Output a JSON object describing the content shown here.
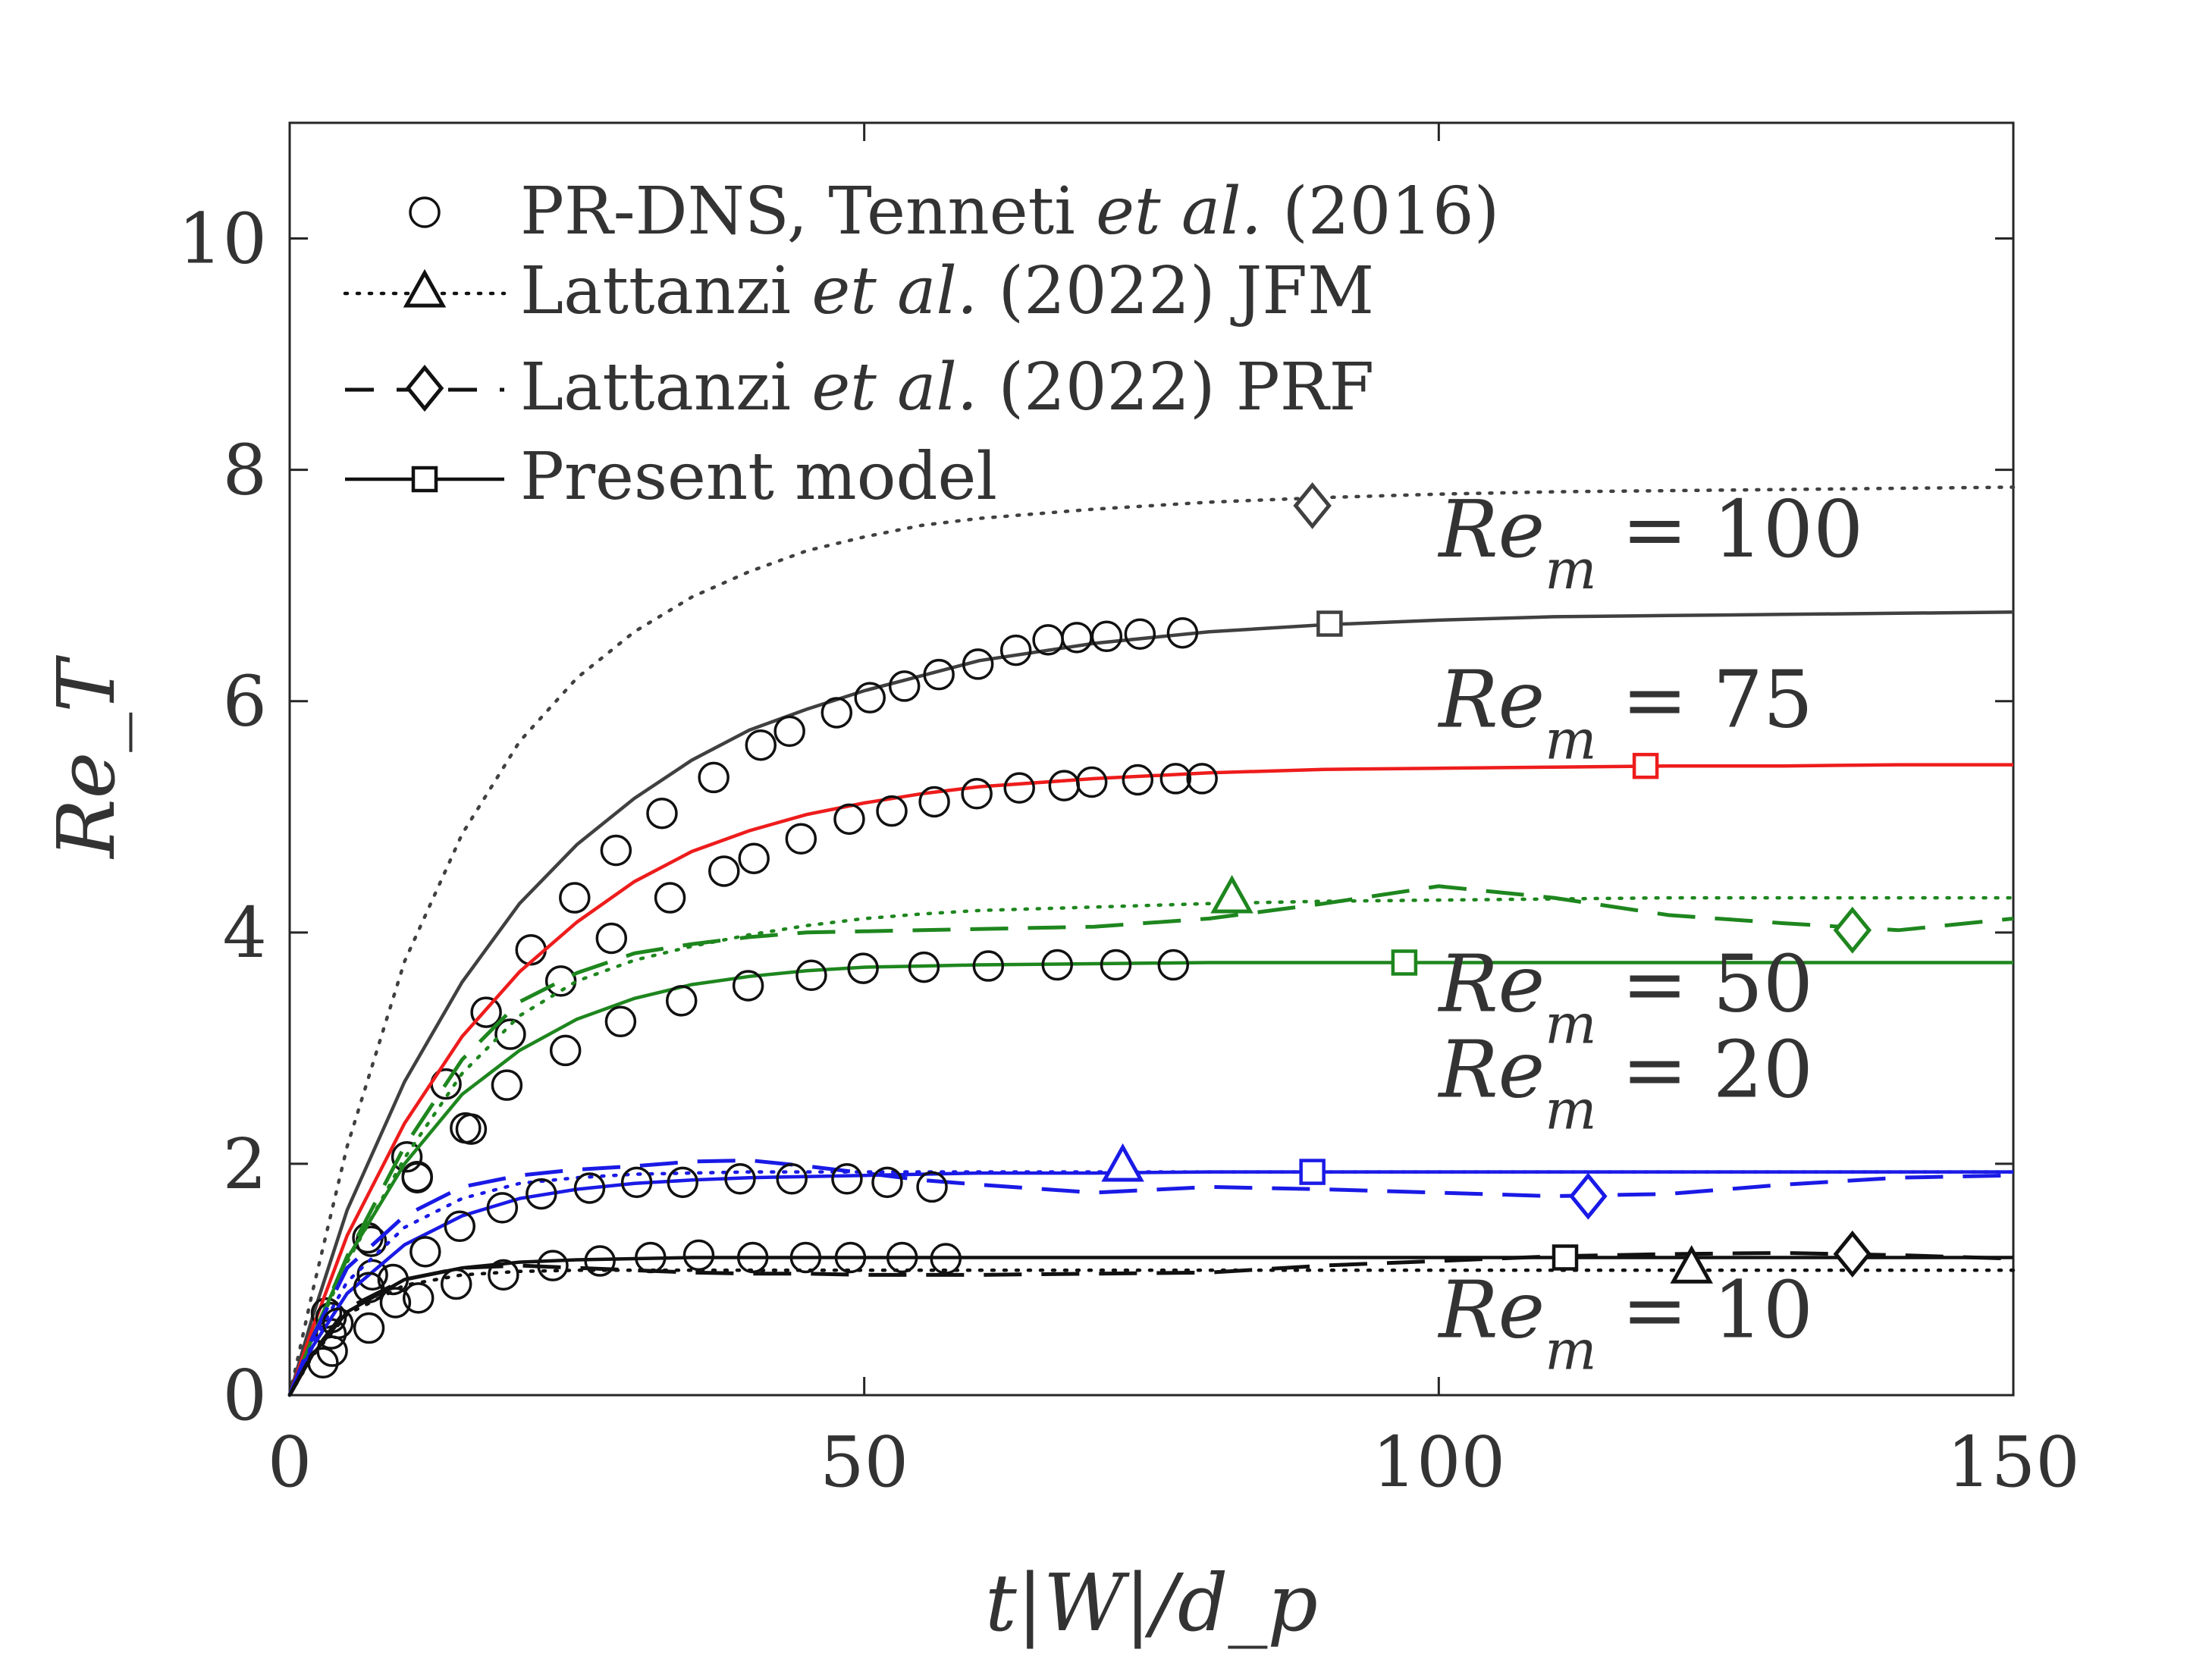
{
  "chart_data": {
    "type": "line",
    "title": "",
    "xlabel": "t|W|/d_p",
    "ylabel": "Re_T",
    "xlim": [
      0,
      150
    ],
    "ylim": [
      0,
      11
    ],
    "xticks": [
      0,
      50,
      100,
      150
    ],
    "yticks": [
      0,
      2,
      4,
      6,
      8,
      10
    ],
    "grid": false,
    "legend_position": "top-left",
    "legend": [
      {
        "key": "dns",
        "pre": "PR-DNS, Tenneti ",
        "it": "et al.",
        "post": " (2016)"
      },
      {
        "key": "jfm",
        "pre": "Lattanzi ",
        "it": "et al.",
        "post": " (2022) JFM"
      },
      {
        "key": "prf",
        "pre": "Lattanzi ",
        "it": "et al.",
        "post": " (2022) PRF"
      },
      {
        "key": "model",
        "pre": "Present model",
        "it": "",
        "post": ""
      }
    ],
    "cases": [
      {
        "label": "Re_m = 100",
        "re": "100",
        "color": "#404040",
        "model_x": [
          0,
          2,
          5,
          10,
          15,
          20,
          25,
          30,
          35,
          40,
          45,
          50,
          55,
          60,
          70,
          80,
          90,
          100,
          110,
          120,
          130,
          140,
          150
        ],
        "model_y": [
          0,
          0.68,
          1.6,
          2.71,
          3.57,
          4.25,
          4.76,
          5.16,
          5.49,
          5.75,
          5.93,
          6.09,
          6.22,
          6.35,
          6.5,
          6.6,
          6.66,
          6.7,
          6.73,
          6.74,
          6.75,
          6.76,
          6.77
        ],
        "model_marker": [
          90.5,
          6.67
        ],
        "jfm_x": [
          0,
          2,
          5,
          10,
          15,
          20,
          25,
          30,
          35,
          40,
          45,
          50,
          55,
          60,
          70,
          80,
          90,
          100,
          110,
          120,
          130,
          140,
          150
        ],
        "jfm_y": [
          0,
          0.9,
          2.15,
          3.75,
          4.85,
          5.65,
          6.2,
          6.6,
          6.9,
          7.12,
          7.3,
          7.42,
          7.52,
          7.58,
          7.66,
          7.72,
          7.76,
          7.79,
          7.81,
          7.82,
          7.83,
          7.84,
          7.85
        ],
        "prf_marker": [
          89,
          7.69
        ],
        "dns_x": [
          3.2,
          6.8,
          10.2,
          13.6,
          17.1,
          21,
          24.8,
          28.4,
          32.4,
          36.9,
          41,
          43.5,
          47.6,
          50.5,
          53.5,
          56.5,
          59.9,
          63.2,
          66,
          68.5,
          71.1,
          74,
          77.7
        ],
        "dns_y": [
          0.71,
          1.36,
          2.06,
          2.69,
          3.31,
          3.85,
          4.3,
          4.71,
          5.03,
          5.34,
          5.62,
          5.74,
          5.9,
          6.03,
          6.13,
          6.23,
          6.32,
          6.44,
          6.53,
          6.55,
          6.56,
          6.58,
          6.59
        ]
      },
      {
        "label": "Re_m = 75",
        "re": "75",
        "color": "#ee1c1c",
        "model_x": [
          0,
          2,
          5,
          10,
          15,
          20,
          25,
          30,
          35,
          40,
          45,
          50,
          55,
          60,
          70,
          80,
          90,
          100,
          110,
          120,
          130,
          140,
          150
        ],
        "model_y": [
          0,
          0.58,
          1.38,
          2.35,
          3.1,
          3.66,
          4.09,
          4.44,
          4.7,
          4.88,
          5.02,
          5.12,
          5.2,
          5.26,
          5.33,
          5.38,
          5.41,
          5.42,
          5.43,
          5.44,
          5.44,
          5.45,
          5.45
        ],
        "model_marker": [
          118,
          5.44
        ],
        "dns_x": [
          3.6,
          7.1,
          11.1,
          15.3,
          19.2,
          23.6,
          28,
          33.1,
          37.8,
          40.4,
          44.5,
          48.7,
          52.4,
          56.1,
          59.8,
          63.5,
          67.4,
          69.8,
          73.8,
          77.1,
          79.4
        ],
        "dns_y": [
          0.67,
          1.33,
          1.89,
          2.31,
          3.12,
          3.58,
          3.95,
          4.3,
          4.53,
          4.64,
          4.81,
          4.98,
          5.05,
          5.13,
          5.2,
          5.25,
          5.27,
          5.3,
          5.32,
          5.33,
          5.33
        ]
      },
      {
        "label": "Re_m = 50",
        "re": "50",
        "color": "#1e861e",
        "model_x": [
          0,
          2,
          5,
          10,
          15,
          20,
          25,
          30,
          35,
          40,
          45,
          50,
          55,
          60,
          70,
          80,
          90,
          100,
          110,
          120,
          130,
          140,
          150
        ],
        "model_y": [
          0,
          0.5,
          1.18,
          2.0,
          2.6,
          2.98,
          3.25,
          3.43,
          3.55,
          3.62,
          3.67,
          3.7,
          3.71,
          3.72,
          3.73,
          3.74,
          3.74,
          3.74,
          3.74,
          3.74,
          3.74,
          3.74,
          3.74
        ],
        "model_marker": [
          97,
          3.74
        ],
        "jfm_x": [
          0,
          2,
          5,
          10,
          15,
          20,
          25,
          30,
          35,
          40,
          45,
          50,
          55,
          60,
          70,
          80,
          90,
          100,
          110,
          120,
          130,
          140,
          150
        ],
        "jfm_y": [
          0,
          0.48,
          1.15,
          2.05,
          2.78,
          3.28,
          3.58,
          3.76,
          3.88,
          3.98,
          4.06,
          4.12,
          4.16,
          4.19,
          4.22,
          4.25,
          4.27,
          4.28,
          4.29,
          4.3,
          4.3,
          4.3,
          4.3
        ],
        "jfm_marker": [
          82,
          4.3
        ],
        "prf_x": [
          0,
          2,
          5,
          10,
          15,
          20,
          25,
          30,
          35,
          40,
          45,
          50,
          55,
          60,
          70,
          80,
          90,
          100,
          110,
          120,
          130,
          140,
          150
        ],
        "prf_y": [
          0,
          0.5,
          1.2,
          2.15,
          2.9,
          3.4,
          3.65,
          3.82,
          3.9,
          3.96,
          4.0,
          4.01,
          4.02,
          4.03,
          4.05,
          4.12,
          4.25,
          4.4,
          4.3,
          4.15,
          4.08,
          4.02,
          4.12
        ],
        "prf_marker": [
          136,
          4.02
        ],
        "dns_x": [
          3.6,
          7.2,
          11.1,
          15.8,
          18.9,
          24,
          28.8,
          34.1,
          39.9,
          45.4,
          49.9,
          55.2,
          60.8,
          66.8,
          71.9,
          76.9
        ],
        "dns_y": [
          0.53,
          1.04,
          1.88,
          2.3,
          2.68,
          2.98,
          3.23,
          3.41,
          3.54,
          3.63,
          3.69,
          3.7,
          3.71,
          3.72,
          3.72,
          3.72
        ]
      },
      {
        "label": "Re_m = 20",
        "re": "20",
        "color": "#1a1ae6",
        "model_x": [
          0,
          2,
          5,
          10,
          15,
          20,
          25,
          30,
          35,
          40,
          45,
          50,
          55,
          60,
          70,
          80,
          90,
          100,
          110,
          120,
          130,
          140,
          150
        ],
        "model_y": [
          0,
          0.42,
          0.88,
          1.3,
          1.55,
          1.7,
          1.78,
          1.83,
          1.86,
          1.88,
          1.89,
          1.9,
          1.91,
          1.92,
          1.92,
          1.93,
          1.93,
          1.93,
          1.93,
          1.93,
          1.93,
          1.93,
          1.93
        ],
        "model_marker": [
          89,
          1.93
        ],
        "jfm_x": [
          0,
          2,
          5,
          10,
          15,
          20,
          25,
          30,
          35,
          40,
          45,
          50,
          55,
          60,
          70,
          80,
          90,
          100,
          110,
          120,
          130,
          140,
          150
        ],
        "jfm_y": [
          0,
          0.45,
          0.98,
          1.45,
          1.7,
          1.83,
          1.88,
          1.91,
          1.92,
          1.93,
          1.93,
          1.93,
          1.93,
          1.93,
          1.93,
          1.93,
          1.93,
          1.93,
          1.93,
          1.93,
          1.93,
          1.93,
          1.93
        ],
        "jfm_marker": [
          72.5,
          1.98
        ],
        "prf_x": [
          0,
          2,
          5,
          10,
          15,
          20,
          25,
          30,
          35,
          40,
          45,
          50,
          55,
          60,
          70,
          80,
          90,
          100,
          110,
          120,
          130,
          140,
          150
        ],
        "prf_y": [
          0,
          0.5,
          1.1,
          1.55,
          1.8,
          1.9,
          1.95,
          1.98,
          2.02,
          2.03,
          1.98,
          1.92,
          1.86,
          1.82,
          1.75,
          1.8,
          1.78,
          1.75,
          1.72,
          1.74,
          1.82,
          1.88,
          1.9
        ],
        "prf_marker": [
          113,
          1.72
        ],
        "dns_x": [
          4.2,
          6.9,
          9,
          11.8,
          14.8,
          18.5,
          21.9,
          26.1,
          30.2,
          34.2,
          39.2,
          43.7,
          48.5,
          52,
          55.9
        ],
        "dns_y": [
          0.62,
          0.93,
          1.0,
          1.24,
          1.46,
          1.62,
          1.74,
          1.79,
          1.84,
          1.84,
          1.87,
          1.87,
          1.87,
          1.84,
          1.8
        ]
      },
      {
        "label": "Re_m = 10",
        "re": "10",
        "color": "#111111",
        "model_x": [
          0,
          2,
          5,
          10,
          15,
          20,
          25,
          30,
          35,
          40,
          45,
          50,
          55,
          60,
          70,
          80,
          90,
          100,
          110,
          120,
          130,
          140,
          150
        ],
        "model_y": [
          0,
          0.35,
          0.72,
          1.0,
          1.1,
          1.15,
          1.17,
          1.18,
          1.19,
          1.19,
          1.19,
          1.19,
          1.19,
          1.19,
          1.19,
          1.19,
          1.19,
          1.19,
          1.19,
          1.19,
          1.19,
          1.19,
          1.19
        ],
        "model_marker": [
          111,
          1.19
        ],
        "jfm_x": [
          0,
          2,
          5,
          10,
          15,
          20,
          25,
          30,
          35,
          40,
          45,
          50,
          55,
          60,
          70,
          80,
          90,
          100,
          110,
          120,
          130,
          140,
          150
        ],
        "jfm_y": [
          0,
          0.34,
          0.7,
          0.95,
          1.04,
          1.07,
          1.08,
          1.08,
          1.08,
          1.08,
          1.08,
          1.08,
          1.08,
          1.08,
          1.08,
          1.08,
          1.08,
          1.08,
          1.08,
          1.08,
          1.08,
          1.08,
          1.08
        ],
        "jfm_marker": [
          122,
          1.1
        ],
        "prf_x": [
          0,
          2,
          5,
          10,
          15,
          20,
          25,
          30,
          35,
          40,
          45,
          50,
          55,
          60,
          70,
          80,
          90,
          100,
          110,
          120,
          130,
          140,
          150
        ],
        "prf_y": [
          0,
          0.36,
          0.75,
          1.0,
          1.1,
          1.12,
          1.1,
          1.08,
          1.06,
          1.05,
          1.05,
          1.04,
          1.04,
          1.04,
          1.05,
          1.06,
          1.12,
          1.16,
          1.2,
          1.22,
          1.23,
          1.21,
          1.18
        ],
        "prf_marker": [
          136,
          1.22
        ],
        "dns_x": [
          2.9,
          3.7,
          6.9,
          9.2,
          11.2,
          14.5,
          18.6,
          22.9,
          27,
          31.4,
          35.6,
          40.3,
          44.9,
          48.8,
          53.3,
          57.1
        ],
        "dns_y": [
          0.28,
          0.38,
          0.58,
          0.8,
          0.84,
          0.96,
          1.04,
          1.12,
          1.16,
          1.19,
          1.21,
          1.19,
          1.19,
          1.19,
          1.19,
          1.18
        ]
      }
    ],
    "annotations": [
      {
        "re": "100",
        "x": 100,
        "y": 7.25
      },
      {
        "re": "75",
        "x": 100,
        "y": 5.78
      },
      {
        "re": "50",
        "x": 100,
        "y": 3.32
      },
      {
        "re": "20",
        "x": 100,
        "y": 2.58
      },
      {
        "re": "10",
        "x": 100,
        "y": 0.5
      }
    ]
  }
}
